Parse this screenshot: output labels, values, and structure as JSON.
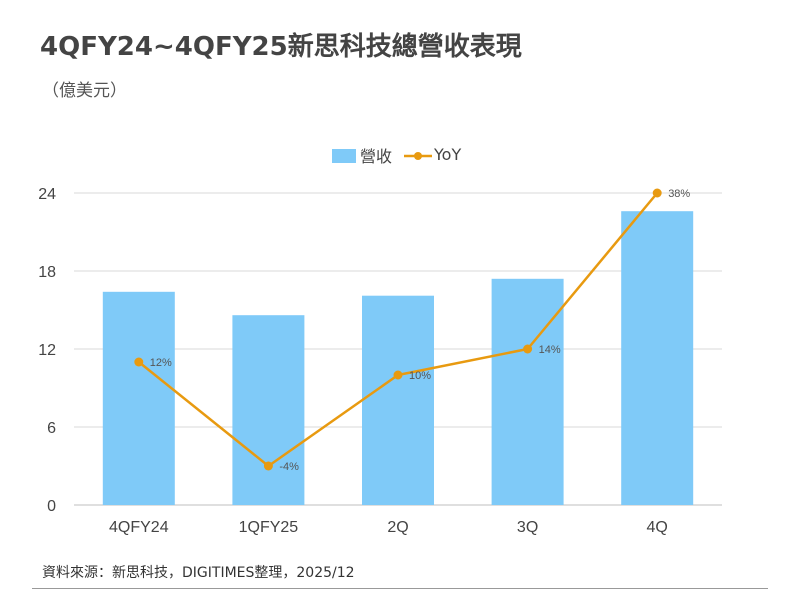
{
  "title": "4QFY24~4QFY25新思科技總營收表現",
  "subtitle": "（億美元）",
  "source": "資料來源：新思科技，DIGITIMES整理，2025/12",
  "colors": {
    "bar": "#7fcaf8",
    "line": "#e89a10",
    "grid": "#d9d9d9",
    "axis": "#bfbfbf"
  },
  "chart_data": {
    "type": "bar",
    "categories": [
      "4QFY24",
      "1QFY25",
      "2Q",
      "3Q",
      "4Q"
    ],
    "series": [
      {
        "name": "營收",
        "type": "bar",
        "axis": "left",
        "values": [
          16.4,
          14.6,
          16.1,
          17.4,
          22.6
        ]
      },
      {
        "name": "YoY",
        "type": "line",
        "axis": "right",
        "values": [
          12,
          -4,
          10,
          14,
          38
        ],
        "labels": [
          "12%",
          "-4%",
          "10%",
          "14%",
          "38%"
        ]
      }
    ],
    "yticks": [
      "0",
      "6",
      "12",
      "18",
      "24"
    ],
    "ylim": [
      0,
      24
    ],
    "y2lim": [
      -10,
      38
    ],
    "grid": true,
    "legend_position": "top-center"
  }
}
